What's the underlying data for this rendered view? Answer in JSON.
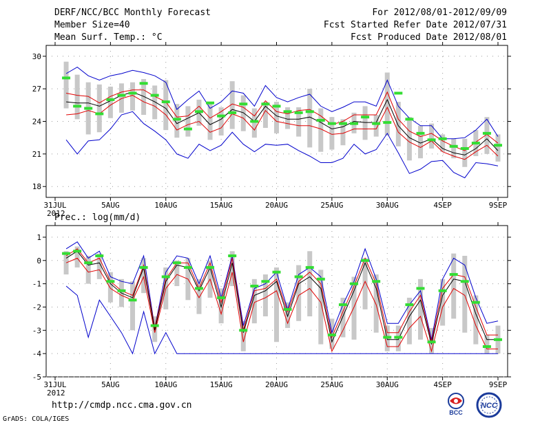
{
  "header": {
    "title": "DERF/NCC/BCC Monthly Forecast",
    "member": "Member Size=40",
    "variable": "Mean Surf. Temp.: °C",
    "period": "For 2012/08/01-2012/09/09",
    "fcst_started": "Fcst Started Refer Date 2012/07/31",
    "fcst_produced": "Fcst Produced Date 2012/08/01"
  },
  "footer": {
    "url": "http://cmdp.ncc.cma.gov.cn",
    "credit": "GrADS: COLA/IGES",
    "logo_bcc": "BCC",
    "logo_ncc": "NCC"
  },
  "colors": {
    "max_min": "#0000cc",
    "quartile": "#e00000",
    "median": "#000000",
    "box": "#c8c8c8",
    "mean_marker": "#33dd33",
    "frame": "#000000",
    "grid": "#999999"
  },
  "chart_data": [
    {
      "type": "box",
      "panel": "temperature",
      "ylabel_text": "",
      "ylim": [
        17,
        31
      ],
      "yticks": [
        18,
        21,
        24,
        27,
        30
      ],
      "x_tick_positions": [
        0,
        5,
        10,
        15,
        20,
        25,
        30,
        35,
        40
      ],
      "x_tick_labels": [
        "31JUL",
        "5AUG",
        "10AUG",
        "15AUG",
        "20AUG",
        "25AUG",
        "30AUG",
        "4SEP",
        "9SEP"
      ],
      "x_sub_label": "2012",
      "x_range": [
        0,
        40
      ],
      "days": [
        1,
        2,
        3,
        4,
        5,
        6,
        7,
        8,
        9,
        10,
        11,
        12,
        13,
        14,
        15,
        16,
        17,
        18,
        19,
        20,
        21,
        22,
        23,
        24,
        25,
        26,
        27,
        28,
        29,
        30,
        31,
        32,
        33,
        34,
        35,
        36,
        37,
        38,
        39,
        40
      ],
      "series": [
        {
          "name": "max",
          "values": [
            28.4,
            29.0,
            28.2,
            27.8,
            28.2,
            28.4,
            28.7,
            28.5,
            28.2,
            27.6,
            25.1,
            26.0,
            26.8,
            25.2,
            25.8,
            26.8,
            26.6,
            25.4,
            27.3,
            26.2,
            25.8,
            26.2,
            26.5,
            25.4,
            24.9,
            25.3,
            25.8,
            25.8,
            25.4,
            27.8,
            25.4,
            24.3,
            23.6,
            23.6,
            22.4,
            22.4,
            22.5,
            23.2,
            24.2,
            22.6
          ]
        },
        {
          "name": "q3",
          "values": [
            26.6,
            26.4,
            26.3,
            25.7,
            26.3,
            26.7,
            26.9,
            26.9,
            26.3,
            25.8,
            24.4,
            24.5,
            25.4,
            24.3,
            24.9,
            25.6,
            25.3,
            24.5,
            25.9,
            24.9,
            24.7,
            25.0,
            25.1,
            24.5,
            23.7,
            24.0,
            24.6,
            24.6,
            24.6,
            26.7,
            24.2,
            23.1,
            22.6,
            22.9,
            22.2,
            21.7,
            21.3,
            22.1,
            22.8,
            22.0
          ]
        },
        {
          "name": "median",
          "values": [
            25.8,
            25.7,
            25.7,
            25.4,
            25.9,
            26.4,
            26.7,
            26.3,
            25.8,
            25.2,
            23.8,
            24.3,
            24.8,
            23.7,
            24.2,
            25.1,
            24.8,
            24.0,
            25.4,
            24.5,
            24.2,
            24.2,
            24.4,
            23.9,
            23.3,
            23.5,
            24.0,
            23.9,
            23.9,
            26.0,
            23.6,
            22.5,
            22.0,
            22.4,
            21.5,
            21.1,
            20.9,
            21.5,
            22.4,
            21.3
          ]
        },
        {
          "name": "q1",
          "values": [
            24.6,
            24.7,
            25.0,
            24.7,
            25.5,
            26.1,
            26.4,
            25.8,
            25.4,
            24.6,
            23.2,
            23.7,
            24.0,
            23.0,
            23.4,
            24.7,
            24.3,
            23.2,
            25.0,
            24.0,
            23.8,
            23.6,
            23.6,
            23.3,
            22.8,
            22.9,
            23.3,
            23.3,
            23.3,
            25.3,
            23.0,
            22.1,
            21.6,
            22.2,
            21.2,
            20.8,
            20.5,
            21.2,
            21.8,
            20.8
          ]
        },
        {
          "name": "min",
          "values": [
            22.3,
            21.0,
            22.2,
            22.3,
            23.3,
            24.6,
            24.9,
            23.8,
            23.1,
            22.3,
            21.0,
            20.6,
            21.9,
            21.3,
            21.8,
            23.0,
            21.9,
            21.2,
            21.9,
            21.8,
            21.9,
            21.3,
            20.8,
            20.2,
            20.2,
            20.6,
            21.9,
            21.0,
            21.4,
            22.9,
            21.1,
            19.2,
            19.6,
            20.3,
            20.4,
            19.3,
            18.8,
            20.2,
            20.1,
            19.9
          ]
        },
        {
          "name": "ensemble_mean",
          "values": [
            28.0,
            25.4,
            25.2,
            24.7,
            26.0,
            26.4,
            26.6,
            27.5,
            26.4,
            25.8,
            24.2,
            23.3,
            24.9,
            25.7,
            24.5,
            24.8,
            25.6,
            24.0,
            25.6,
            25.4,
            24.9,
            24.8,
            24.9,
            24.1,
            23.8,
            23.8,
            23.8,
            24.4,
            23.8,
            23.9,
            26.6,
            24.2,
            22.9,
            22.3,
            22.4,
            21.7,
            21.5,
            22.0,
            22.9,
            21.8
          ]
        },
        {
          "name": "box_top",
          "values": [
            29.5,
            28.3,
            27.6,
            27.4,
            27.2,
            27.5,
            27.6,
            27.9,
            27.3,
            27.8,
            25.6,
            25.4,
            26.0,
            25.6,
            25.3,
            27.7,
            26.4,
            25.2,
            25.8,
            25.8,
            25.3,
            25.3,
            27.0,
            25.2,
            24.4,
            24.2,
            24.8,
            25.4,
            24.6,
            28.5,
            25.8,
            24.4,
            23.6,
            23.8,
            22.8,
            22.4,
            22.4,
            23.2,
            24.4,
            22.8
          ]
        },
        {
          "name": "box_bottom",
          "values": [
            25.2,
            24.2,
            22.8,
            23.0,
            24.3,
            24.8,
            25.0,
            24.6,
            24.2,
            23.2,
            22.5,
            22.6,
            23.6,
            22.3,
            22.7,
            23.3,
            23.1,
            22.5,
            23.4,
            22.9,
            23.3,
            22.6,
            21.6,
            21.2,
            21.4,
            21.8,
            22.9,
            22.3,
            22.6,
            22.7,
            21.7,
            20.4,
            20.6,
            21.5,
            21.2,
            20.6,
            19.8,
            20.8,
            21.0,
            20.3
          ]
        }
      ]
    },
    {
      "type": "box",
      "panel": "precipitation",
      "ylabel_text": "Prec.: log(mm/d)",
      "ylim": [
        -5,
        1.5
      ],
      "yticks": [
        -5,
        -4,
        -3,
        -2,
        -1,
        0,
        1
      ],
      "x_tick_positions": [
        0,
        5,
        10,
        15,
        20,
        25,
        30,
        35,
        40
      ],
      "x_tick_labels": [
        "31JUL",
        "5AUG",
        "10AUG",
        "15AUG",
        "20AUG",
        "25AUG",
        "30AUG",
        "4SEP",
        "9SEP"
      ],
      "x_sub_label": "2012",
      "x_range": [
        0,
        40
      ],
      "days": [
        1,
        2,
        3,
        4,
        5,
        6,
        7,
        8,
        9,
        10,
        11,
        12,
        13,
        14,
        15,
        16,
        17,
        18,
        19,
        20,
        21,
        22,
        23,
        24,
        25,
        26,
        27,
        28,
        29,
        30,
        31,
        32,
        33,
        34,
        35,
        36,
        37,
        38,
        39,
        40
      ],
      "series": [
        {
          "name": "max",
          "values": [
            0.5,
            0.8,
            0.1,
            0.4,
            -0.7,
            -0.9,
            -1.0,
            0.2,
            -2.9,
            -0.5,
            0.2,
            0.1,
            -1.0,
            0.2,
            -1.6,
            0.2,
            -2.8,
            -1.2,
            -1.0,
            -0.5,
            -2.1,
            -0.6,
            -0.3,
            -0.7,
            -3.1,
            -1.9,
            -0.9,
            0.5,
            -0.8,
            -2.7,
            -2.7,
            -1.9,
            -1.3,
            -3.4,
            -0.8,
            0.1,
            -0.2,
            -1.6,
            -2.7,
            -2.6
          ]
        },
        {
          "name": "q3",
          "values": [
            0.2,
            0.5,
            -0.1,
            0.1,
            -0.9,
            -1.3,
            -1.5,
            -0.2,
            -2.9,
            -0.8,
            -0.1,
            -0.1,
            -1.2,
            -0.1,
            -1.8,
            0.1,
            -3.0,
            -1.3,
            -1.2,
            -0.8,
            -2.2,
            -0.9,
            -0.5,
            -1.0,
            -3.3,
            -2.2,
            -1.1,
            0.1,
            -1.0,
            -3.1,
            -3.1,
            -2.2,
            -1.5,
            -3.5,
            -1.2,
            -0.6,
            -0.7,
            -2.0,
            -3.2,
            -3.2
          ]
        },
        {
          "name": "median",
          "values": [
            0.1,
            0.4,
            -0.2,
            -0.1,
            -1.0,
            -1.4,
            -1.6,
            -0.3,
            -3.0,
            -0.9,
            -0.2,
            -0.3,
            -1.3,
            -0.3,
            -2.0,
            -0.1,
            -3.1,
            -1.5,
            -1.3,
            -0.9,
            -2.4,
            -1.0,
            -0.7,
            -1.2,
            -3.5,
            -2.4,
            -1.3,
            -0.1,
            -1.2,
            -3.4,
            -3.4,
            -2.4,
            -1.7,
            -3.6,
            -1.5,
            -0.8,
            -0.9,
            -2.3,
            -3.4,
            -3.4
          ]
        },
        {
          "name": "q1",
          "values": [
            -0.1,
            0.1,
            -0.5,
            -0.4,
            -1.2,
            -1.5,
            -1.7,
            -0.7,
            -3.1,
            -1.2,
            -0.6,
            -0.8,
            -1.6,
            -0.8,
            -2.3,
            -0.5,
            -3.5,
            -1.8,
            -1.6,
            -1.3,
            -2.7,
            -1.5,
            -1.2,
            -1.8,
            -3.9,
            -3.0,
            -2.0,
            -0.9,
            -1.9,
            -3.7,
            -3.7,
            -2.9,
            -2.4,
            -3.9,
            -2.0,
            -1.2,
            -1.5,
            -2.8,
            -3.8,
            -3.8
          ]
        },
        {
          "name": "min",
          "values": [
            -1.1,
            -1.5,
            -3.3,
            -1.7,
            -2.4,
            -3.1,
            -4.0,
            -2.2,
            -4.0,
            -3.1,
            -4.0,
            -4.0,
            -4.0,
            -4.0,
            -4.0,
            -4.0,
            -4.0,
            -4.0,
            -4.0,
            -4.0,
            -4.0,
            -4.0,
            -4.0,
            -4.0,
            -4.0,
            -4.0,
            -4.0,
            -4.0,
            -4.0,
            -4.0,
            -4.0,
            -4.0,
            -4.0,
            -4.0,
            -4.0,
            -4.0,
            -4.0,
            -4.0,
            -4.0,
            -4.0
          ]
        },
        {
          "name": "ensemble_mean",
          "values": [
            0.3,
            0.4,
            -0.1,
            0.2,
            -0.9,
            -1.3,
            -1.7,
            -0.3,
            -2.8,
            -0.7,
            -0.1,
            -0.3,
            -1.2,
            -0.3,
            -1.6,
            0.2,
            -3.0,
            -1.1,
            -0.9,
            -0.5,
            -2.1,
            -0.7,
            -0.3,
            -0.8,
            -3.2,
            -1.9,
            -1.0,
            0.0,
            -0.9,
            -3.3,
            -3.3,
            -1.9,
            -1.2,
            -3.5,
            -1.3,
            -0.6,
            -0.9,
            -1.8,
            -3.7,
            -3.4
          ]
        },
        {
          "name": "box_top",
          "values": [
            0.4,
            0.6,
            0.2,
            0.3,
            -0.5,
            -0.8,
            -0.9,
            0.1,
            -2.4,
            -0.3,
            0.0,
            0.1,
            -0.8,
            0.0,
            -1.2,
            0.4,
            -2.6,
            -0.8,
            -0.6,
            -0.3,
            -1.8,
            -0.2,
            0.4,
            -0.4,
            -2.5,
            -1.6,
            -0.7,
            0.1,
            -0.6,
            -2.8,
            -2.8,
            -1.6,
            -0.8,
            -2.9,
            -0.8,
            0.3,
            0.2,
            -1.5,
            -3.2,
            -2.8
          ]
        },
        {
          "name": "box_bottom",
          "values": [
            -0.6,
            -0.3,
            -1.0,
            -0.8,
            -1.8,
            -2.0,
            -3.0,
            -1.4,
            -3.5,
            -2.1,
            -1.1,
            -1.7,
            -2.3,
            -1.6,
            -2.7,
            -1.1,
            -3.9,
            -2.7,
            -2.4,
            -3.5,
            -2.9,
            -2.6,
            -2.4,
            -3.6,
            -3.8,
            -3.3,
            -3.4,
            -2.1,
            -3.1,
            -3.9,
            -3.9,
            -3.6,
            -3.4,
            -4.0,
            -2.8,
            -2.5,
            -3.1,
            -3.6,
            -4.0,
            -4.0
          ]
        }
      ]
    }
  ]
}
